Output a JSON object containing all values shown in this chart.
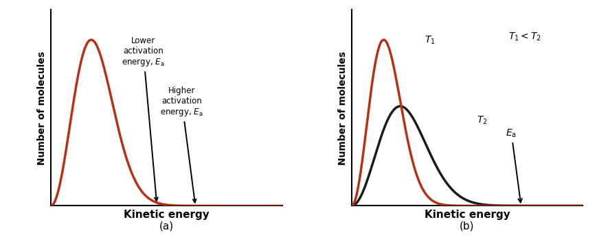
{
  "fig_width": 8.7,
  "fig_height": 3.62,
  "bg_color": "#ffffff",
  "curve_color_red": "#B83015",
  "curve_color_black": "#1a1a1a",
  "fill_color_light": "#F2D070",
  "fill_color_dark": "#D4A000",
  "xlabel": "Kinetic energy",
  "ylabel": "Number of molecules",
  "label_a": "(a)",
  "label_b": "(b)",
  "annotation_lower": "Lower\nactivation\nenergy, $E_{\\mathrm{a}}$",
  "annotation_higher": "Higher\nactivation\nenergy, $E_{\\mathrm{a}}$",
  "annotation_ea": "$E_{\\mathrm{a}}$",
  "label_T1": "$T_1$",
  "label_T2": "$T_2$",
  "label_T1_lt_T2": "$T_1 < T_2$",
  "panel_a_lower_ea": 5.5,
  "panel_a_higher_ea": 7.5,
  "panel_b_ea": 8.8,
  "xmax": 12.0
}
